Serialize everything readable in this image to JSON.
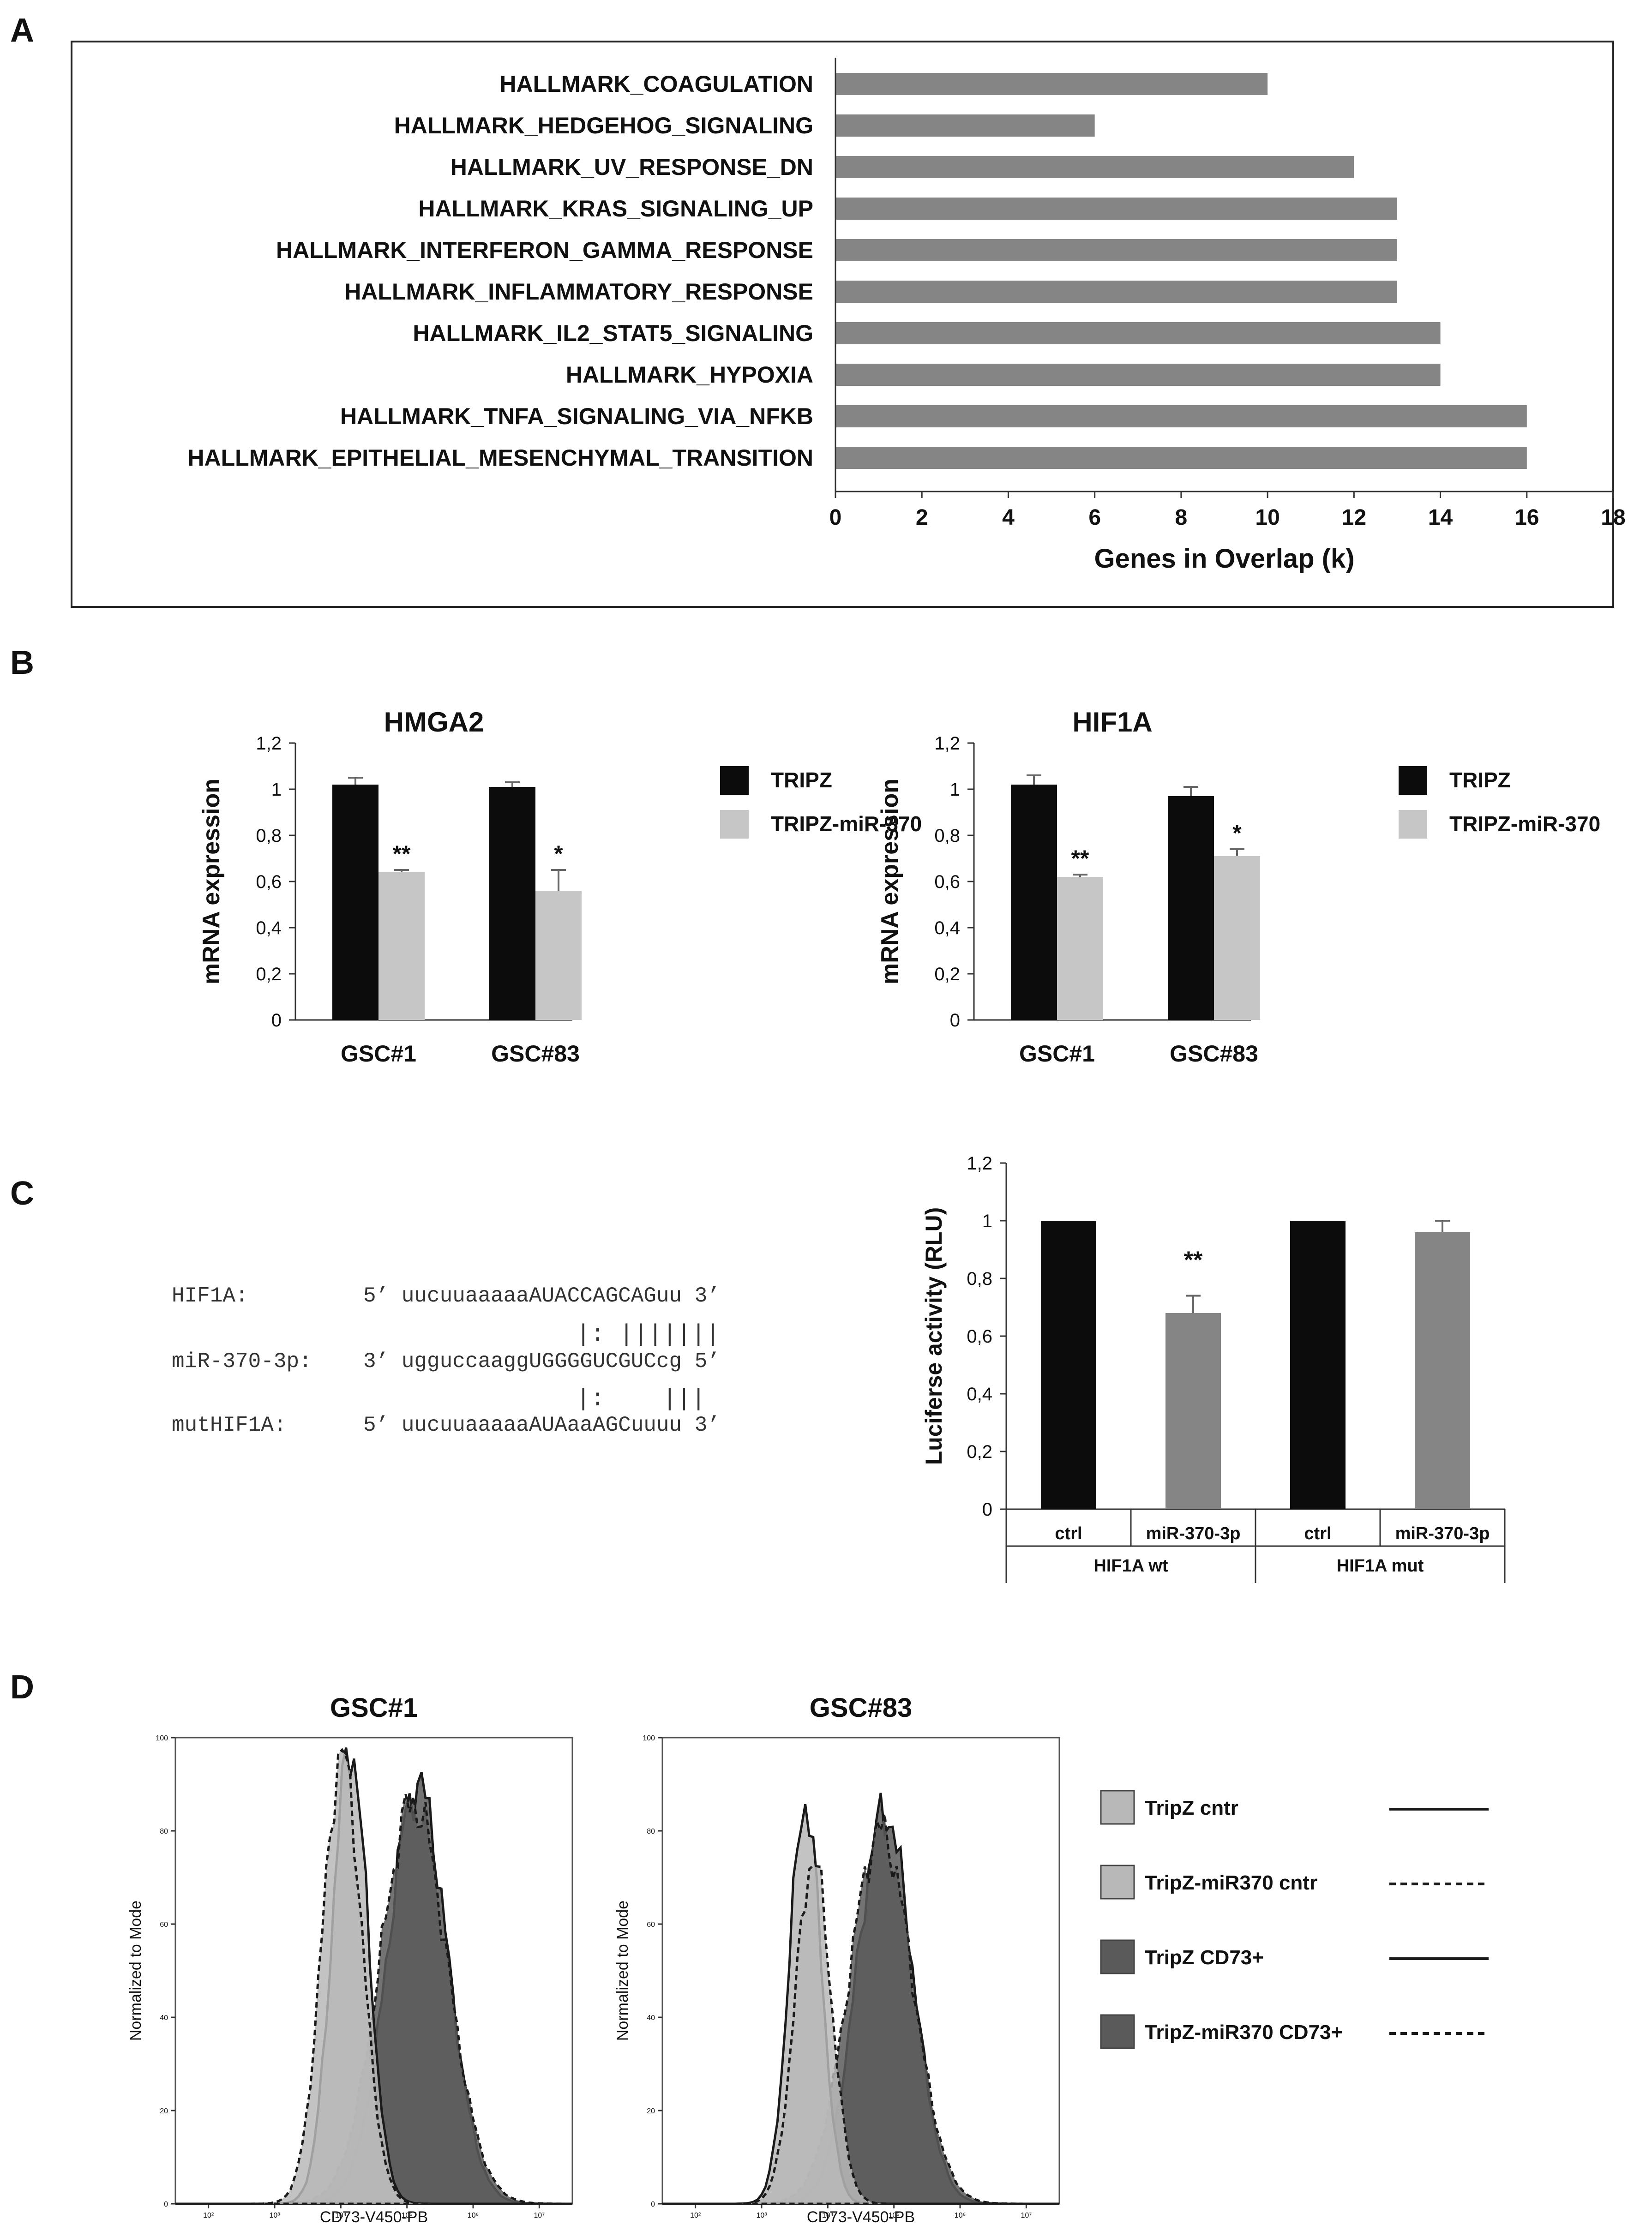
{
  "panel_labels": {
    "a": "A",
    "b": "B",
    "c": "C",
    "d": "D"
  },
  "colors": {
    "bar_gray": "#858585",
    "black": "#0c0c0c",
    "light_gray": "#c6c6c6",
    "hist_light": "#b8b8b8",
    "hist_dark": "#5a5a5a"
  },
  "chart_data": [
    {
      "id": "A",
      "type": "bar",
      "orientation": "horizontal",
      "categories": [
        "HALLMARK_COAGULATION",
        "HALLMARK_HEDGEHOG_SIGNALING",
        "HALLMARK_UV_RESPONSE_DN",
        "HALLMARK_KRAS_SIGNALING_UP",
        "HALLMARK_INTERFERON_GAMMA_RESPONSE",
        "HALLMARK_INFLAMMATORY_RESPONSE",
        "HALLMARK_IL2_STAT5_SIGNALING",
        "HALLMARK_HYPOXIA",
        "HALLMARK_TNFA_SIGNALING_VIA_NFKB",
        "HALLMARK_EPITHELIAL_MESENCHYMAL_TRANSITION"
      ],
      "values": [
        10,
        6,
        12,
        13,
        13,
        13,
        14,
        14,
        16,
        16
      ],
      "xlabel": "Genes in Overlap (k)",
      "xlim": [
        0,
        18
      ],
      "ticks": [
        "0",
        "2",
        "4",
        "6",
        "8",
        "10",
        "12",
        "14",
        "16",
        "18"
      ]
    },
    {
      "id": "B1",
      "type": "bar",
      "title": "HMGA2",
      "ylabel": "mRNA expression",
      "ylim": [
        0,
        1.2
      ],
      "yticks": [
        "0",
        "0,2",
        "0,4",
        "0,6",
        "0,8",
        "1",
        "1,2"
      ],
      "categories": [
        "GSC#1",
        "GSC#83"
      ],
      "series": [
        {
          "name": "TRIPZ",
          "values": [
            1.02,
            1.01
          ],
          "errors": [
            0.03,
            0.02
          ]
        },
        {
          "name": "TRIPZ-miR-370",
          "values": [
            0.64,
            0.56
          ],
          "errors": [
            0.01,
            0.09
          ]
        }
      ],
      "annotations": [
        "**",
        "*"
      ]
    },
    {
      "id": "B2",
      "type": "bar",
      "title": "HIF1A",
      "ylabel": "mRNA expression",
      "ylim": [
        0,
        1.2
      ],
      "yticks": [
        "0",
        "0,2",
        "0,4",
        "0,6",
        "0,8",
        "1",
        "1,2"
      ],
      "categories": [
        "GSC#1",
        "GSC#83"
      ],
      "series": [
        {
          "name": "TRIPZ",
          "values": [
            1.02,
            0.97
          ],
          "errors": [
            0.04,
            0.04
          ]
        },
        {
          "name": "TRIPZ-miR-370",
          "values": [
            0.62,
            0.71
          ],
          "errors": [
            0.01,
            0.03
          ]
        }
      ],
      "annotations": [
        "**",
        "*"
      ]
    },
    {
      "id": "C",
      "type": "bar",
      "ylabel": "Luciferse activity (RLU)",
      "ylim": [
        0,
        1.2
      ],
      "yticks": [
        "0",
        "0,2",
        "0,4",
        "0,6",
        "0,8",
        "1",
        "1,2"
      ],
      "categories": [
        "ctrl",
        "miR-370-3p",
        "ctrl",
        "miR-370-3p"
      ],
      "groups": [
        "HIF1A wt",
        "HIF1A mut"
      ],
      "values": [
        1.0,
        0.68,
        1.0,
        0.96
      ],
      "errors": [
        0,
        0.06,
        0,
        0.04
      ],
      "bar_colors": [
        "black",
        "bar_gray",
        "black",
        "bar_gray"
      ],
      "annotation": "**"
    },
    {
      "id": "D",
      "type": "area",
      "titles": [
        "GSC#1",
        "GSC#83"
      ],
      "xlabel": "CD73-V450-PB",
      "ylabel": "Normalized to Mode",
      "yticks": [
        "0",
        "20",
        "40",
        "60",
        "80",
        "100"
      ],
      "xticks": [
        "10²",
        "10³",
        "10⁴",
        "10⁵",
        "10⁶",
        "10⁷"
      ],
      "legend": [
        "TripZ cntr",
        "TripZ-miR370 cntr",
        "TripZ CD73+",
        "TripZ-miR370 CD73+"
      ]
    }
  ],
  "sequence": {
    "rows": [
      {
        "name": "HIF1A:",
        "seq": "5’ uucuuaaaaaAUACCAGCAGuu 3’"
      },
      {
        "name": "miR-370-3p:",
        "seq": "3’ ugguccaaggUGGGGUCGUCcg 5’"
      },
      {
        "name": "mutHIF1A:",
        "seq": "5’ uucuuaaaaaAUAaaAGCuuuu 3’"
      }
    ],
    "pairs_top": "|: |||||||",
    "pairs_bottom": "|:    |||"
  }
}
